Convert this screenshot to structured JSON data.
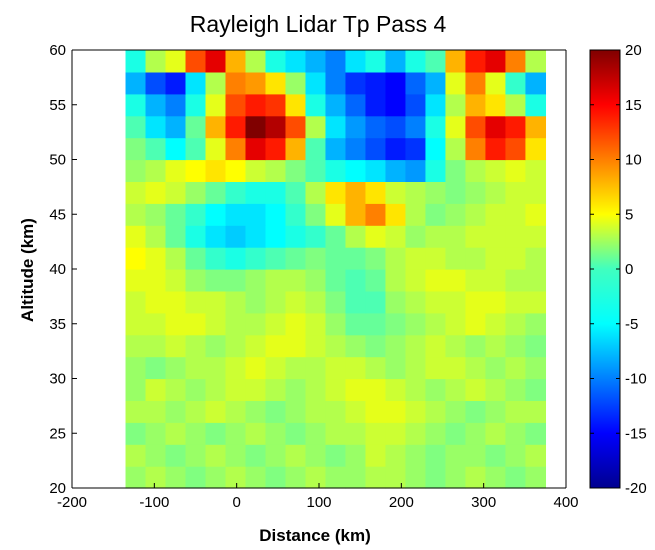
{
  "chart_data": {
    "type": "heatmap",
    "title": "Rayleigh Lidar Tp Pass 4",
    "xlabel": "Distance (km)",
    "ylabel": "Altitude (km)",
    "xlim": [
      -200,
      400
    ],
    "ylim": [
      20,
      60
    ],
    "x_ticks": [
      -200,
      -100,
      0,
      100,
      200,
      300,
      400
    ],
    "y_ticks": [
      20,
      25,
      30,
      35,
      40,
      45,
      50,
      55,
      60
    ],
    "data_extent_x": [
      -135,
      375
    ],
    "colorbar": {
      "colormap": "jet",
      "range": [
        -20,
        20
      ],
      "ticks": [
        20,
        15,
        10,
        5,
        0,
        -5,
        -10,
        -15,
        -20
      ]
    },
    "altitudes": [
      21,
      23,
      25,
      27,
      29,
      31,
      33,
      35,
      37,
      39,
      41,
      43,
      45,
      47,
      49,
      51,
      53,
      55,
      57,
      59
    ],
    "distances": [
      -135,
      -110,
      -85,
      -60,
      -35,
      -10,
      15,
      40,
      65,
      90,
      115,
      140,
      165,
      190,
      215,
      240,
      265,
      290,
      315,
      340,
      365
    ],
    "values": [
      [
        1,
        2,
        1,
        0,
        1,
        2,
        1,
        0,
        1,
        2,
        1,
        1,
        2,
        2,
        1,
        0,
        1,
        2,
        1,
        0,
        1
      ],
      [
        2,
        1,
        0,
        1,
        2,
        1,
        0,
        1,
        2,
        1,
        0,
        1,
        3,
        2,
        1,
        0,
        1,
        1,
        0,
        1,
        2
      ],
      [
        0,
        1,
        2,
        1,
        0,
        1,
        2,
        1,
        0,
        1,
        2,
        2,
        3,
        3,
        2,
        1,
        0,
        1,
        2,
        1,
        0
      ],
      [
        2,
        2,
        1,
        2,
        3,
        2,
        1,
        0,
        1,
        2,
        2,
        3,
        4,
        4,
        3,
        2,
        1,
        0,
        1,
        2,
        2
      ],
      [
        1,
        3,
        2,
        1,
        2,
        3,
        3,
        2,
        1,
        2,
        3,
        4,
        4,
        3,
        2,
        1,
        2,
        3,
        2,
        1,
        0
      ],
      [
        1,
        0,
        1,
        2,
        2,
        3,
        4,
        3,
        2,
        2,
        3,
        3,
        2,
        1,
        2,
        3,
        3,
        2,
        1,
        2,
        1
      ],
      [
        2,
        2,
        3,
        2,
        1,
        2,
        3,
        4,
        4,
        3,
        2,
        1,
        0,
        1,
        2,
        3,
        2,
        1,
        2,
        1,
        0
      ],
      [
        3,
        3,
        4,
        4,
        3,
        2,
        2,
        3,
        4,
        3,
        1,
        -1,
        -1,
        0,
        1,
        2,
        3,
        4,
        3,
        2,
        1
      ],
      [
        3,
        4,
        4,
        3,
        3,
        2,
        1,
        2,
        3,
        2,
        0,
        -2,
        -2,
        1,
        2,
        3,
        3,
        4,
        4,
        3,
        3
      ],
      [
        4,
        4,
        3,
        1,
        0,
        0,
        1,
        2,
        2,
        1,
        -1,
        -2,
        -1,
        2,
        3,
        4,
        4,
        3,
        3,
        2,
        2
      ],
      [
        5,
        4,
        2,
        -1,
        -3,
        -4,
        -3,
        -2,
        -1,
        0,
        -1,
        -1,
        0,
        2,
        3,
        3,
        2,
        2,
        3,
        3,
        2
      ],
      [
        4,
        2,
        -1,
        -4,
        -6,
        -7,
        -6,
        -5,
        -4,
        -3,
        -1,
        2,
        4,
        3,
        1,
        2,
        2,
        3,
        3,
        3,
        3
      ],
      [
        2,
        1,
        -1,
        -3,
        -5,
        -6,
        -6,
        -5,
        -3,
        0,
        4,
        8,
        10,
        6,
        2,
        0,
        1,
        2,
        3,
        3,
        4
      ],
      [
        3,
        4,
        3,
        1,
        -1,
        -3,
        -4,
        -4,
        -2,
        2,
        6,
        8,
        6,
        3,
        2,
        1,
        0,
        1,
        2,
        3,
        3
      ],
      [
        1,
        2,
        4,
        5,
        6,
        5,
        3,
        2,
        0,
        -2,
        -4,
        -5,
        -6,
        -8,
        -9,
        -4,
        0,
        2,
        3,
        4,
        3
      ],
      [
        0,
        -2,
        -5,
        -2,
        4,
        10,
        16,
        14,
        8,
        -2,
        -8,
        -10,
        -12,
        -14,
        -13,
        -5,
        2,
        10,
        14,
        12,
        6
      ],
      [
        -2,
        -6,
        -8,
        -1,
        8,
        14,
        20,
        18,
        12,
        2,
        -6,
        -9,
        -11,
        -12,
        -10,
        -4,
        4,
        12,
        16,
        14,
        8
      ],
      [
        -4,
        -8,
        -10,
        -4,
        4,
        12,
        14,
        13,
        6,
        -4,
        -8,
        -11,
        -14,
        -15,
        -12,
        -6,
        2,
        8,
        6,
        2,
        -4
      ],
      [
        -8,
        -12,
        -14,
        -6,
        2,
        10,
        9,
        6,
        1,
        -6,
        -10,
        -13,
        -14,
        -15,
        -11,
        -8,
        4,
        10,
        4,
        -3,
        -8
      ],
      [
        -4,
        2,
        4,
        12,
        16,
        8,
        2,
        -4,
        -6,
        -8,
        -10,
        -6,
        -4,
        -8,
        -4,
        -2,
        8,
        14,
        16,
        10,
        2
      ]
    ]
  }
}
